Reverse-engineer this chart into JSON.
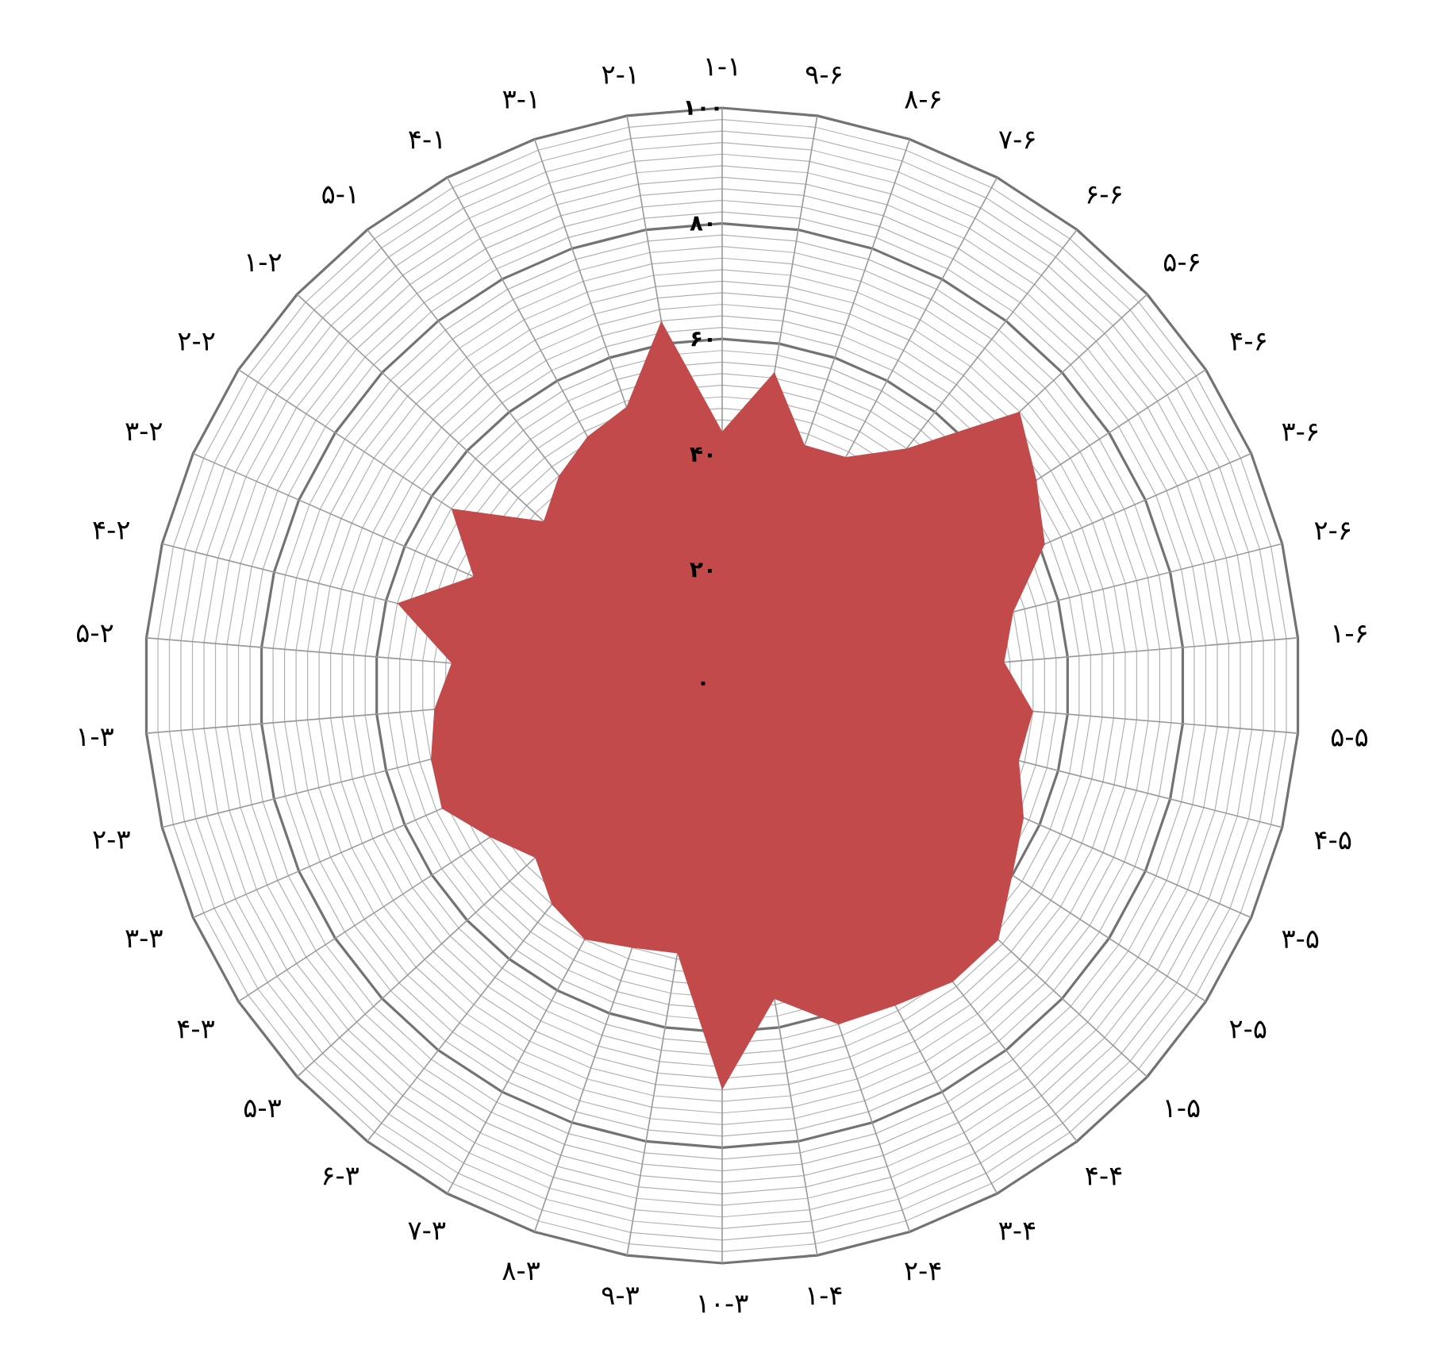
{
  "chart_data": {
    "type": "radar",
    "categories": [
      "۱-۱",
      "۹-۶",
      "۸-۶",
      "۷-۶",
      "۶-۶",
      "۵-۶",
      "۴-۶",
      "۳-۶",
      "۲-۶",
      "۱-۶",
      "۵-۵",
      "۴-۵",
      "۳-۵",
      "۲-۵",
      "۱-۵",
      "۴-۴",
      "۳-۴",
      "۲-۴",
      "۱-۴",
      "۱۰-۳",
      "۹-۳",
      "۸-۳",
      "۷-۳",
      "۶-۳",
      "۵-۳",
      "۴-۳",
      "۳-۳",
      "۲-۳",
      "۱-۳",
      "۵-۲",
      "۴-۲",
      "۳-۲",
      "۲-۲",
      "۱-۲",
      "۵-۱",
      "۴-۱",
      "۳-۱",
      "۲-۱"
    ],
    "series": [
      {
        "color": "#c24a4a",
        "values": [
          44,
          55,
          44,
          45,
          52,
          70,
          65,
          61,
          52,
          49,
          54,
          53,
          57,
          60,
          65,
          65,
          63,
          62,
          55,
          70,
          47,
          48,
          50,
          48,
          44,
          48,
          53,
          52,
          50,
          47,
          58,
          47,
          56,
          42,
          46,
          49,
          51,
          64
        ]
      }
    ],
    "ylim": [
      0,
      100
    ],
    "yticks": [
      {
        "value": 0,
        "label": "۰"
      },
      {
        "value": 20,
        "label": "۲۰"
      },
      {
        "value": 40,
        "label": "۴۰"
      },
      {
        "value": 60,
        "label": "۶۰"
      },
      {
        "value": 80,
        "label": "۸۰"
      },
      {
        "value": 100,
        "label": "۱۰۰"
      }
    ],
    "grid": true
  }
}
